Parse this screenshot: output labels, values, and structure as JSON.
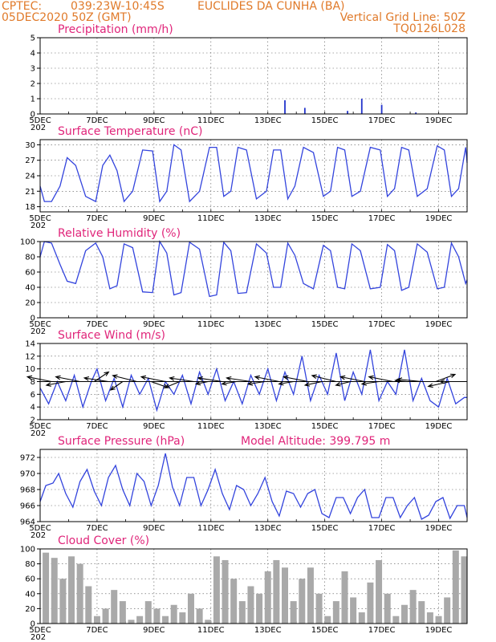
{
  "header": {
    "source": "CPTEC:",
    "coords": "039:23W-10:45S",
    "location": "EUCLIDES DA CUNHA (BA)",
    "run": "05DEC2020 50Z (GMT)",
    "grid_note": "Vertical Grid Line: 50Z",
    "code": "TQ0126L028"
  },
  "x_ticks": [
    "5DEC",
    "7DEC",
    "9DEC",
    "11DEC",
    "13DEC",
    "15DEC",
    "17DEC",
    "19DEC"
  ],
  "x_year": "202",
  "altitude_label": "Model Altitude: 399.795 m",
  "colors": {
    "header": "#e07a2a",
    "title": "#e0257a",
    "line": "#3344dd",
    "precip": "#2233cc",
    "cloud": "#a9a9a9"
  },
  "chart_data": [
    {
      "type": "bar",
      "title": "Precipitation (mm/h)",
      "ylim": [
        0,
        5
      ],
      "yticks": [
        "0",
        "1",
        "2",
        "3",
        "4",
        "5"
      ],
      "x_range_days": [
        5,
        20
      ],
      "x": [
        13.6,
        14.3,
        15.8,
        16.3,
        17.0,
        18.2
      ],
      "values": [
        0.9,
        0.4,
        0.2,
        1.0,
        0.6,
        0.1
      ]
    },
    {
      "type": "line",
      "title": "Surface Temperature (nC)",
      "ylim": [
        17,
        31
      ],
      "yticks": [
        "18",
        "21",
        "24",
        "27",
        "30"
      ],
      "x_range_days": [
        5,
        20
      ],
      "series": [
        {
          "x": [
            5.0,
            5.15,
            5.4,
            5.7,
            5.95,
            6.25,
            6.6,
            6.95,
            7.2,
            7.45,
            7.7,
            7.95,
            8.25,
            8.6,
            8.95,
            9.2,
            9.45,
            9.7,
            9.95,
            10.25,
            10.6,
            10.95,
            11.2,
            11.45,
            11.7,
            11.95,
            12.25,
            12.6,
            12.95,
            13.2,
            13.45,
            13.7,
            13.95,
            14.25,
            14.6,
            14.95,
            15.2,
            15.45,
            15.7,
            15.95,
            16.25,
            16.6,
            16.95,
            17.2,
            17.45,
            17.7,
            17.95,
            18.25,
            18.6,
            18.95,
            19.2,
            19.45,
            19.7,
            19.95,
            20.0
          ],
          "values": [
            22,
            19,
            19,
            22,
            27.5,
            26,
            20,
            19,
            26,
            28,
            25,
            19,
            21,
            29,
            28.8,
            19,
            21,
            30,
            29,
            19,
            21,
            29.5,
            29.5,
            20,
            21,
            29.5,
            29,
            19.5,
            21,
            29,
            29,
            19.5,
            22,
            29.5,
            28.5,
            20,
            21,
            29.5,
            29,
            20,
            21,
            29.5,
            29,
            20,
            21.5,
            29.5,
            29,
            20,
            21.5,
            29.8,
            29,
            20,
            21.5,
            29.5,
            26.5
          ]
        }
      ]
    },
    {
      "type": "line",
      "title": "Relative Humidity (%)",
      "ylim": [
        0,
        100
      ],
      "yticks": [
        "0",
        "20",
        "40",
        "60",
        "80",
        "100"
      ],
      "x_range_days": [
        5,
        20
      ],
      "series": [
        {
          "x": [
            5.0,
            5.15,
            5.4,
            5.7,
            5.95,
            6.25,
            6.6,
            6.95,
            7.2,
            7.45,
            7.7,
            7.95,
            8.25,
            8.6,
            8.95,
            9.2,
            9.45,
            9.7,
            9.95,
            10.25,
            10.6,
            10.95,
            11.2,
            11.45,
            11.7,
            11.95,
            12.25,
            12.6,
            12.95,
            13.2,
            13.45,
            13.7,
            13.95,
            14.25,
            14.6,
            14.95,
            15.2,
            15.45,
            15.7,
            15.95,
            16.25,
            16.6,
            16.95,
            17.2,
            17.45,
            17.7,
            17.95,
            18.25,
            18.6,
            18.95,
            19.2,
            19.45,
            19.7,
            19.95,
            20.0
          ],
          "values": [
            80,
            100,
            98,
            70,
            48,
            45,
            88,
            98,
            80,
            38,
            42,
            97,
            92,
            34,
            33,
            100,
            85,
            30,
            33,
            99,
            90,
            28,
            30,
            99,
            88,
            32,
            33,
            97,
            85,
            40,
            40,
            98,
            82,
            45,
            38,
            95,
            88,
            40,
            38,
            97,
            88,
            38,
            40,
            96,
            88,
            36,
            40,
            97,
            86,
            38,
            40,
            98,
            80,
            45,
            50
          ]
        }
      ]
    },
    {
      "type": "line",
      "title": "Surface Wind (m/s)",
      "ylim": [
        2,
        14
      ],
      "yticks": [
        "2",
        "4",
        "6",
        "8",
        "10",
        "12",
        "14"
      ],
      "x_range_days": [
        5,
        20
      ],
      "series": [
        {
          "x": [
            5.0,
            5.3,
            5.6,
            5.9,
            6.2,
            6.5,
            6.8,
            7.0,
            7.3,
            7.6,
            7.9,
            8.2,
            8.5,
            8.8,
            9.1,
            9.4,
            9.7,
            10.0,
            10.3,
            10.6,
            10.9,
            11.2,
            11.5,
            11.8,
            12.1,
            12.4,
            12.7,
            13.0,
            13.3,
            13.6,
            13.9,
            14.2,
            14.5,
            14.8,
            15.1,
            15.4,
            15.7,
            16.0,
            16.3,
            16.6,
            16.9,
            17.2,
            17.5,
            17.8,
            18.1,
            18.4,
            18.7,
            19.0,
            19.3,
            19.6,
            19.9,
            20.0
          ],
          "values": [
            7,
            4.5,
            8,
            5,
            9,
            4,
            8,
            10,
            5,
            8.5,
            4,
            9,
            6,
            8.5,
            3.5,
            8,
            6,
            9,
            4.5,
            9.5,
            6,
            10,
            5,
            8,
            4.5,
            9,
            6,
            10,
            5,
            9.5,
            6,
            12,
            5,
            9,
            6,
            12.5,
            5,
            9.5,
            6,
            13,
            5,
            8,
            6,
            13,
            5,
            8.5,
            5,
            4,
            8.5,
            4.5,
            5.5,
            5.5
          ]
        }
      ],
      "wind_vectors": {
        "x": [
          5.4,
          5.9,
          6.4,
          6.9,
          7.4,
          7.9,
          8.4,
          8.9,
          9.4,
          9.9,
          10.4,
          10.9,
          11.4,
          11.9,
          12.4,
          12.9,
          13.4,
          13.9,
          14.4,
          14.9,
          15.4,
          15.9,
          16.4,
          16.9,
          17.4,
          17.9,
          18.4,
          18.9,
          19.4,
          19.9
        ],
        "u": [
          -1,
          -0.8,
          -1,
          0.6,
          -1,
          -0.5,
          -1,
          0.7,
          -1,
          -0.6,
          -1,
          -0.5,
          -1,
          -0.6,
          -1,
          -0.7,
          -1,
          -0.6,
          -1,
          -0.7,
          -1,
          -0.6,
          -1,
          -0.7,
          -1,
          -0.5,
          -1,
          0.8,
          -0.9,
          -1
        ],
        "v": [
          0.4,
          -0.3,
          0.4,
          0.8,
          0.3,
          -0.7,
          0.5,
          -0.5,
          0.4,
          -0.5,
          0.3,
          -0.2,
          0.3,
          -0.2,
          0.3,
          -0.2,
          0.4,
          -0.2,
          0.4,
          -0.3,
          0.5,
          -0.3,
          0.4,
          -0.2,
          0.4,
          0.1,
          0.2,
          0.6,
          -0.4,
          0.0
        ]
      }
    },
    {
      "type": "line",
      "title": "Surface Pressure (hPa)",
      "ylim": [
        964,
        973
      ],
      "yticks": [
        "964",
        "966",
        "968",
        "970",
        "972"
      ],
      "x_range_days": [
        5,
        20
      ],
      "series": [
        {
          "x": [
            5.0,
            5.2,
            5.45,
            5.65,
            5.9,
            6.15,
            6.4,
            6.65,
            6.9,
            7.15,
            7.4,
            7.65,
            7.9,
            8.15,
            8.4,
            8.65,
            8.9,
            9.15,
            9.4,
            9.65,
            9.9,
            10.15,
            10.4,
            10.65,
            10.9,
            11.15,
            11.4,
            11.65,
            11.9,
            12.15,
            12.4,
            12.65,
            12.9,
            13.15,
            13.4,
            13.65,
            13.9,
            14.15,
            14.4,
            14.65,
            14.9,
            15.15,
            15.4,
            15.65,
            15.9,
            16.15,
            16.4,
            16.65,
            16.9,
            17.15,
            17.4,
            17.65,
            17.9,
            18.15,
            18.4,
            18.65,
            18.9,
            19.15,
            19.4,
            19.65,
            19.9,
            20.0
          ],
          "values": [
            966.5,
            968.5,
            968.8,
            970,
            967.5,
            965.8,
            969,
            970.5,
            967.8,
            966,
            969.5,
            971,
            968,
            966,
            970,
            969,
            966,
            968.5,
            972.5,
            968.3,
            966,
            969.5,
            969.5,
            966,
            968,
            970.5,
            967.5,
            965.5,
            968.5,
            968,
            966,
            967.5,
            969.5,
            966.5,
            964.7,
            967.8,
            967.5,
            965.8,
            967.5,
            968,
            965,
            964.5,
            967,
            967,
            965,
            967,
            968,
            964.5,
            964.5,
            967,
            967,
            964.5,
            966,
            967,
            964.3,
            964.8,
            966.5,
            967,
            964.4,
            966,
            966,
            964.5
          ]
        }
      ]
    },
    {
      "type": "bar",
      "title": "Cloud Cover (%)",
      "ylim": [
        0,
        100
      ],
      "yticks": [
        "0",
        "20",
        "40",
        "60",
        "80",
        "100"
      ],
      "x_range_days": [
        5,
        20
      ],
      "x": [
        5.2,
        5.5,
        5.8,
        6.1,
        6.4,
        6.7,
        7.0,
        7.3,
        7.6,
        7.9,
        8.2,
        8.5,
        8.8,
        9.1,
        9.4,
        9.7,
        10.0,
        10.3,
        10.6,
        10.9,
        11.2,
        11.5,
        11.8,
        12.1,
        12.4,
        12.7,
        13.0,
        13.3,
        13.6,
        13.9,
        14.2,
        14.5,
        14.8,
        15.1,
        15.4,
        15.7,
        16.0,
        16.3,
        16.6,
        16.9,
        17.2,
        17.5,
        17.8,
        18.1,
        18.4,
        18.7,
        19.0,
        19.3,
        19.6,
        19.9
      ],
      "values": [
        95,
        88,
        60,
        90,
        80,
        50,
        10,
        20,
        45,
        30,
        5,
        10,
        30,
        20,
        10,
        25,
        15,
        40,
        20,
        5,
        90,
        85,
        60,
        30,
        50,
        40,
        70,
        85,
        75,
        30,
        60,
        75,
        40,
        10,
        30,
        70,
        35,
        15,
        55,
        85,
        40,
        10,
        25,
        45,
        30,
        15,
        10,
        35,
        98,
        90
      ]
    }
  ]
}
